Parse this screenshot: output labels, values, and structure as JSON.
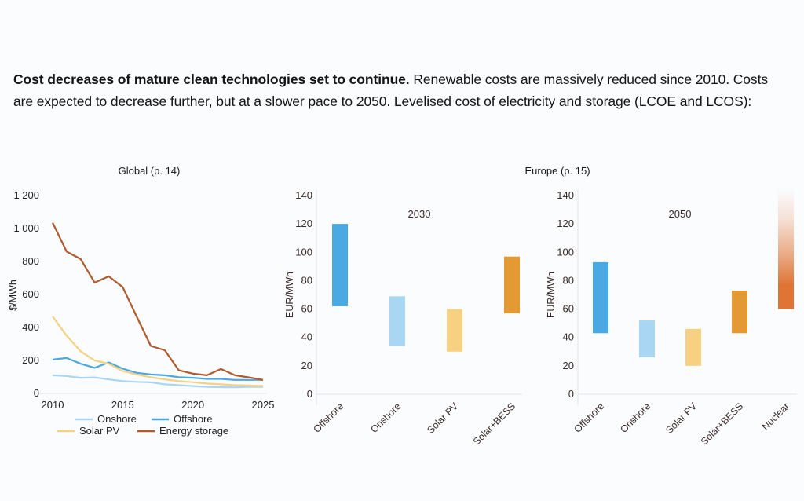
{
  "caption": {
    "bold": "Cost decreases of mature clean technologies set to continue.",
    "rest": " Renewable costs are massively reduced since 2010. Costs are expected to decrease further, but at a slower pace to 2050. Levelised cost of electricity and storage (LCOE and LCOS):"
  },
  "panels": {
    "global_title": "Global (p. 14)",
    "europe_title": "Europe (p. 15)"
  },
  "colors": {
    "onshore": "#A9D7F3",
    "offshore": "#4AA8E2",
    "solar_pv": "#F6D181",
    "energy_storage": "#B05A2E",
    "solar_bess": "#E39A35",
    "nuclear": "#DF7435",
    "axis": "#E2E4EA",
    "text": "#3a2a26"
  },
  "chart_data": [
    {
      "type": "line",
      "title": "Global (p. 14)",
      "xlabel": "",
      "ylabel": "$/MWh",
      "x": [
        2010,
        2011,
        2012,
        2013,
        2014,
        2015,
        2016,
        2017,
        2018,
        2019,
        2020,
        2021,
        2022,
        2023,
        2024,
        2025
      ],
      "xlim": [
        2010,
        2025
      ],
      "ylim": [
        0,
        1200
      ],
      "xticks": [
        2010,
        2015,
        2020,
        2025
      ],
      "xtick_labels": [
        "2010",
        "2015",
        "2020",
        "2025"
      ],
      "yticks": [
        0,
        200,
        400,
        600,
        800,
        1000,
        1200
      ],
      "ytick_labels": [
        "0",
        "200",
        "400",
        "600",
        "800",
        "1 000",
        "1 200"
      ],
      "grid": false,
      "legend": "bottom",
      "series": [
        {
          "name": "Onshore",
          "key": "onshore",
          "values": [
            110,
            105,
            95,
            97,
            85,
            75,
            70,
            67,
            55,
            50,
            45,
            40,
            38,
            37,
            40,
            40
          ]
        },
        {
          "name": "Offshore",
          "key": "offshore",
          "values": [
            205,
            215,
            180,
            155,
            188,
            150,
            125,
            115,
            110,
            98,
            95,
            88,
            88,
            82,
            82,
            82
          ]
        },
        {
          "name": "Solar PV",
          "key": "solar_pv",
          "values": [
            467,
            350,
            255,
            200,
            180,
            135,
            115,
            98,
            85,
            75,
            68,
            60,
            55,
            50,
            48,
            45
          ]
        },
        {
          "name": "Energy storage",
          "key": "energy_storage",
          "values": [
            1035,
            860,
            815,
            672,
            710,
            645,
            465,
            288,
            262,
            140,
            120,
            110,
            148,
            110,
            97,
            82
          ]
        }
      ]
    },
    {
      "type": "bar",
      "subtype": "floating-range",
      "title": "Europe (p. 15)",
      "annotation": "2030",
      "ylabel": "EUR/MWh",
      "ylim": [
        0,
        140
      ],
      "yticks": [
        0,
        20,
        40,
        60,
        80,
        100,
        120,
        140
      ],
      "ytick_labels": [
        "0",
        "20",
        "40",
        "60",
        "80",
        "100",
        "120",
        "140"
      ],
      "grid": false,
      "categories": [
        "Offshore",
        "Onshore",
        "Solar PV",
        "Solar+BESS"
      ],
      "keys": [
        "offshore",
        "onshore",
        "solar_pv",
        "solar_bess"
      ],
      "low": [
        62,
        34,
        30,
        57
      ],
      "high": [
        120,
        69,
        60,
        97
      ]
    },
    {
      "type": "bar",
      "subtype": "floating-range",
      "title": "Europe (p. 15)",
      "annotation": "2050",
      "ylabel": "EUR/MWh",
      "ylim": [
        0,
        140
      ],
      "yticks": [
        0,
        20,
        40,
        60,
        80,
        100,
        120,
        140
      ],
      "ytick_labels": [
        "0",
        "20",
        "40",
        "60",
        "80",
        "100",
        "120",
        "140"
      ],
      "grid": false,
      "categories": [
        "Offshore",
        "Onshore",
        "Solar PV",
        "Solar+BESS",
        "Nuclear"
      ],
      "keys": [
        "offshore",
        "onshore",
        "solar_pv",
        "solar_bess",
        "nuclear"
      ],
      "low": [
        43,
        26,
        20,
        43,
        60
      ],
      "high": [
        93,
        52,
        46,
        73,
        145
      ],
      "open_ended": [
        false,
        false,
        false,
        false,
        true
      ]
    }
  ]
}
